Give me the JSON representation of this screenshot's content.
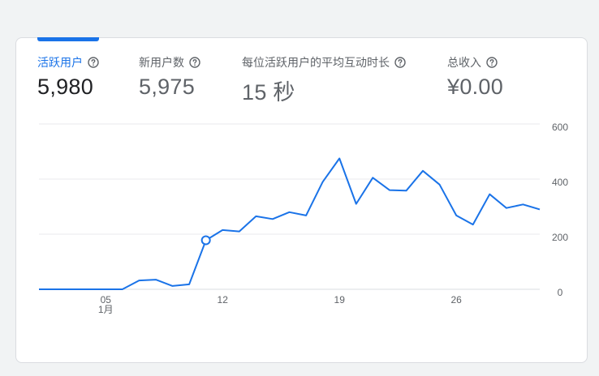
{
  "metrics": [
    {
      "label": "活跃用户",
      "value": "5,980",
      "active": true
    },
    {
      "label": "新用户数",
      "value": "5,975",
      "active": false
    },
    {
      "label": "每位活跃用户的平均互动时长",
      "value": "15 秒",
      "active": false
    },
    {
      "label": "总收入",
      "value": "¥0.00",
      "active": false
    }
  ],
  "colors": {
    "accent": "#1a73e8",
    "line": "#1a73e8",
    "text_primary": "#202124",
    "text_secondary": "#5f6368",
    "grid": "#e8eaed"
  },
  "icons": {
    "help": "help-circle-icon"
  },
  "chart_data": {
    "type": "line",
    "title": "",
    "xlabel": "",
    "ylabel": "",
    "ylim": [
      0,
      600
    ],
    "y_ticks": [
      0,
      200,
      400,
      600
    ],
    "x_tick_labels": [
      {
        "day": 5,
        "label": "05",
        "sublabel": "1月"
      },
      {
        "day": 12,
        "label": "12"
      },
      {
        "day": 19,
        "label": "19"
      },
      {
        "day": 26,
        "label": "26"
      }
    ],
    "x_range": [
      1,
      31
    ],
    "highlight_day": 11,
    "series": [
      {
        "days": [
          1,
          2,
          3,
          4,
          5,
          6,
          7,
          8,
          9,
          10,
          11,
          12,
          13,
          14,
          15,
          16,
          17,
          18,
          19,
          20,
          21,
          22,
          23,
          24,
          25,
          26,
          27,
          28,
          29,
          30,
          31
        ],
        "values": [
          0,
          0,
          0,
          0,
          0,
          0,
          32,
          35,
          12,
          18,
          178,
          215,
          210,
          265,
          255,
          280,
          268,
          390,
          475,
          310,
          405,
          360,
          358,
          430,
          380,
          268,
          235,
          345,
          295,
          308,
          290
        ]
      }
    ]
  }
}
